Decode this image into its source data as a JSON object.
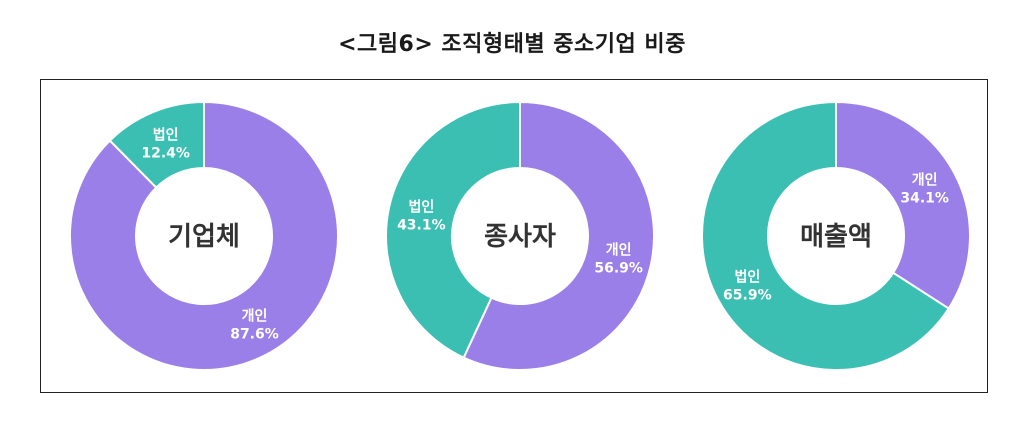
{
  "title": "<그림6> 조직형태별 중소기업 비중",
  "colors": {
    "individual": "#9b7fe8",
    "corporate": "#3bbfb3",
    "center": "#ffffff"
  },
  "chart_data": [
    {
      "type": "pie",
      "center_label": "기업체",
      "slices": [
        {
          "name": "법인",
          "value": 12.4,
          "label": "12.4%",
          "color": "#3bbfb3"
        },
        {
          "name": "개인",
          "value": 87.6,
          "label": "87.6%",
          "color": "#9b7fe8"
        }
      ]
    },
    {
      "type": "pie",
      "center_label": "종사자",
      "slices": [
        {
          "name": "개인",
          "value": 56.9,
          "label": "56.9%",
          "color": "#9b7fe8"
        },
        {
          "name": "법인",
          "value": 43.1,
          "label": "43.1%",
          "color": "#3bbfb3"
        }
      ]
    },
    {
      "type": "pie",
      "center_label": "매출액",
      "slices": [
        {
          "name": "개인",
          "value": 34.1,
          "label": "34.1%",
          "color": "#9b7fe8"
        },
        {
          "name": "법인",
          "value": 65.9,
          "label": "65.9%",
          "color": "#3bbfb3"
        }
      ]
    }
  ]
}
